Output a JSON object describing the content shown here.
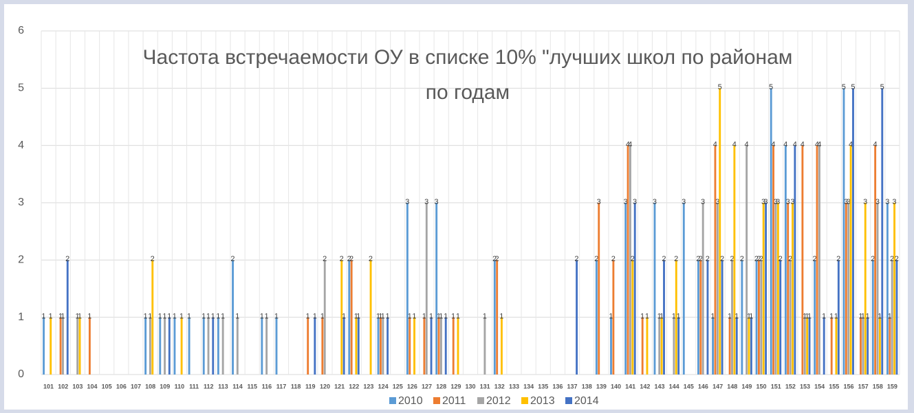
{
  "chart_data": {
    "type": "bar",
    "title": "Частота встречаемости ОУ в списке 10% \"лучших школ по районам по годам",
    "categories": [
      "101",
      "102",
      "103",
      "104",
      "105",
      "106",
      "107",
      "108",
      "109",
      "110",
      "111",
      "112",
      "113",
      "114",
      "115",
      "116",
      "117",
      "118",
      "119",
      "120",
      "121",
      "122",
      "123",
      "124",
      "125",
      "126",
      "127",
      "128",
      "129",
      "130",
      "131",
      "132",
      "133",
      "134",
      "135",
      "136",
      "137",
      "138",
      "139",
      "140",
      "141",
      "142",
      "143",
      "144",
      "145",
      "146",
      "147",
      "148",
      "149",
      "150",
      "151",
      "152",
      "153",
      "154",
      "155",
      "156",
      "157",
      "158",
      "159"
    ],
    "series": [
      {
        "name": "2010",
        "color": "#5b9bd5",
        "values": [
          1,
          null,
          null,
          null,
          null,
          null,
          null,
          1,
          1,
          1,
          1,
          1,
          1,
          2,
          null,
          1,
          1,
          null,
          null,
          null,
          null,
          2,
          null,
          1,
          null,
          3,
          null,
          3,
          null,
          null,
          null,
          2,
          null,
          null,
          null,
          null,
          null,
          null,
          2,
          1,
          3,
          null,
          3,
          null,
          3,
          2,
          1,
          null,
          2,
          2,
          5,
          4,
          null,
          2,
          null,
          5,
          null,
          2,
          3
        ]
      },
      {
        "name": "2011",
        "color": "#ed7d31",
        "values": [
          null,
          1,
          null,
          1,
          null,
          null,
          null,
          null,
          null,
          null,
          null,
          null,
          null,
          null,
          null,
          null,
          null,
          null,
          1,
          1,
          null,
          2,
          null,
          1,
          null,
          1,
          1,
          1,
          1,
          null,
          null,
          2,
          null,
          null,
          null,
          null,
          null,
          null,
          3,
          2,
          4,
          1,
          null,
          null,
          null,
          2,
          4,
          1,
          null,
          2,
          4,
          3,
          4,
          4,
          1,
          3,
          1,
          4,
          1
        ]
      },
      {
        "name": "2012",
        "color": "#a5a5a5",
        "values": [
          null,
          1,
          1,
          null,
          null,
          null,
          null,
          1,
          1,
          null,
          null,
          1,
          1,
          1,
          null,
          1,
          null,
          null,
          null,
          2,
          null,
          null,
          null,
          1,
          null,
          null,
          3,
          1,
          null,
          null,
          1,
          null,
          null,
          null,
          null,
          null,
          null,
          null,
          null,
          null,
          4,
          null,
          1,
          1,
          null,
          3,
          3,
          2,
          4,
          2,
          3,
          2,
          1,
          4,
          null,
          3,
          1,
          3,
          2
        ]
      },
      {
        "name": "2013",
        "color": "#ffc000",
        "values": [
          1,
          null,
          1,
          null,
          null,
          null,
          null,
          2,
          null,
          1,
          null,
          null,
          null,
          null,
          null,
          null,
          null,
          null,
          null,
          null,
          2,
          1,
          2,
          null,
          null,
          1,
          null,
          null,
          1,
          null,
          null,
          1,
          null,
          null,
          null,
          null,
          null,
          null,
          null,
          null,
          2,
          1,
          1,
          2,
          null,
          null,
          5,
          4,
          1,
          3,
          3,
          3,
          1,
          null,
          1,
          4,
          3,
          1,
          3
        ]
      },
      {
        "name": "2014",
        "color": "#4472c4",
        "values": [
          null,
          2,
          null,
          null,
          null,
          null,
          null,
          null,
          1,
          null,
          null,
          1,
          null,
          null,
          null,
          null,
          null,
          null,
          1,
          null,
          1,
          1,
          null,
          1,
          null,
          null,
          1,
          1,
          null,
          null,
          null,
          null,
          null,
          null,
          null,
          null,
          2,
          null,
          null,
          null,
          3,
          null,
          2,
          1,
          null,
          2,
          2,
          1,
          1,
          3,
          2,
          4,
          1,
          1,
          2,
          5,
          1,
          5,
          2
        ]
      }
    ],
    "ylim": [
      0,
      6
    ],
    "yticks": [
      0,
      1,
      2,
      3,
      4,
      5,
      6
    ],
    "grid": true,
    "legend": "bottom"
  }
}
